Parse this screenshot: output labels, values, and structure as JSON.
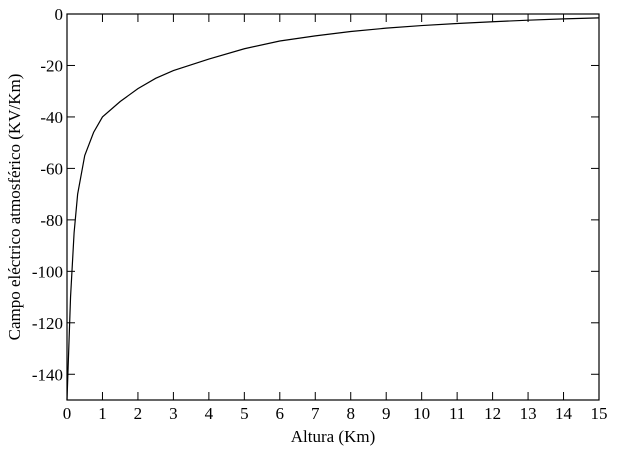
{
  "chart_data": {
    "type": "line",
    "xlabel": "Altura (Km)",
    "ylabel": "Campo eléctrico atmosférico (KV/Km)",
    "x": [
      0,
      0.05,
      0.1,
      0.2,
      0.3,
      0.5,
      0.75,
      1,
      1.5,
      2,
      2.5,
      3,
      4,
      5,
      6,
      7,
      8,
      9,
      10,
      11,
      12,
      13,
      14,
      15
    ],
    "series": [
      {
        "color": "#000000",
        "values": [
          -150,
          -130,
          -110,
          -85,
          -70,
          -55,
          -46,
          -40,
          -34,
          -29,
          -25,
          -22,
          -17.5,
          -13.5,
          -10.5,
          -8.5,
          -6.8,
          -5.5,
          -4.5,
          -3.7,
          -3,
          -2.4,
          -1.9,
          -1.5
        ]
      }
    ],
    "xlim": [
      0,
      15
    ],
    "xticks": [
      0,
      1,
      2,
      3,
      4,
      5,
      6,
      7,
      8,
      9,
      10,
      11,
      12,
      13,
      14,
      15
    ],
    "ylim": [
      -150,
      0
    ],
    "yticks": [
      0,
      -20,
      -40,
      -60,
      -80,
      -100,
      -120,
      -140
    ]
  }
}
